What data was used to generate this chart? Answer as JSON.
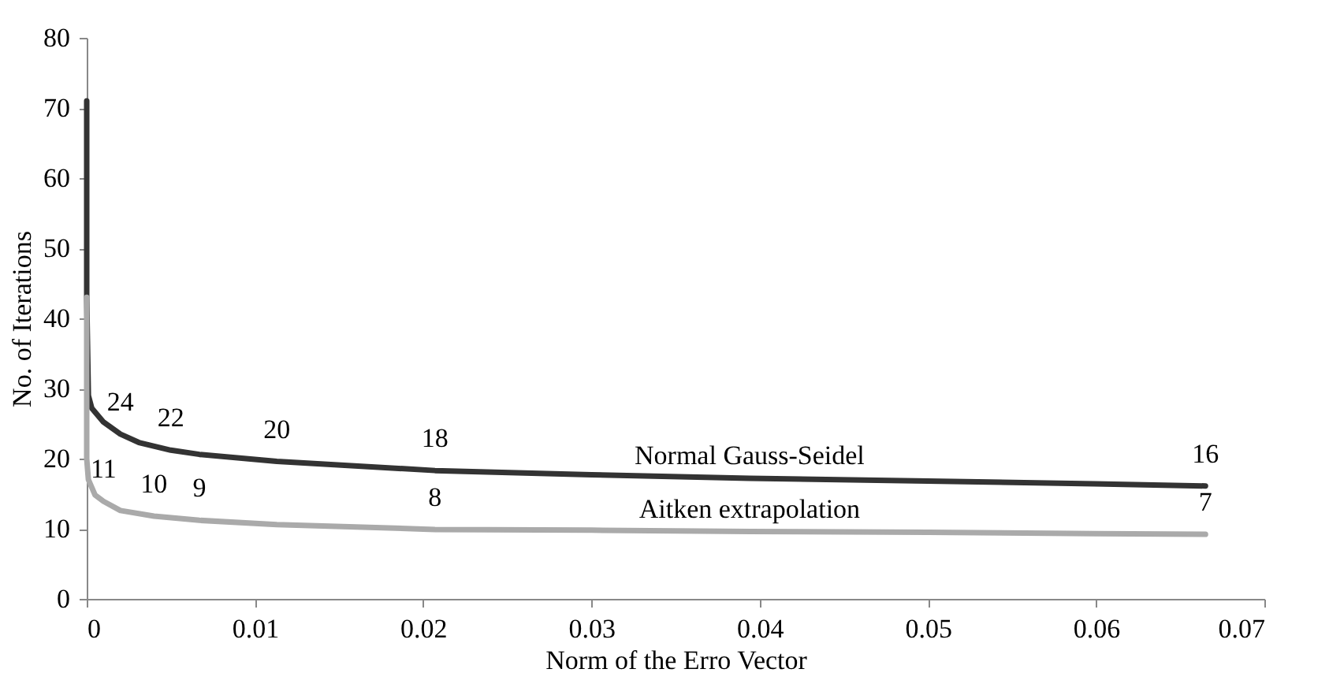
{
  "chart_data": {
    "type": "line",
    "xlabel": "Norm of the Erro Vector",
    "ylabel": "No. of Iterations",
    "xlim": [
      0,
      0.07
    ],
    "xticks": [
      0,
      0.01,
      0.02,
      0.03,
      0.04,
      0.05,
      0.06,
      0.07
    ],
    "ylim": [
      0,
      80
    ],
    "yticks": [
      0,
      10,
      20,
      30,
      40,
      50,
      60,
      70,
      80
    ],
    "grid": false,
    "marker": "none",
    "line_style": "solid",
    "series": [
      {
        "name": "Normal Gauss-Seidel",
        "color": "#333333",
        "x": [
          0,
          0,
          0.0001,
          0.0003,
          0.001,
          0.002,
          0.0031,
          0.005,
          0.0067,
          0.0113,
          0.0207,
          0.03,
          0.0394,
          0.05,
          0.0599,
          0.0665
        ],
        "values": [
          71,
          43,
          29,
          27.2,
          25.2,
          23.5,
          22.3,
          21.2,
          20.6,
          19.6,
          18.3,
          17.7,
          17.2,
          16.8,
          16.4,
          16.1
        ]
      },
      {
        "name": "Aitken extrapolation",
        "color": "#aaaaaa",
        "x": [
          0,
          0,
          0.0001,
          0.0005,
          0.001,
          0.002,
          0.004,
          0.0067,
          0.0113,
          0.0207,
          0.03,
          0.0394,
          0.05,
          0.06,
          0.0665
        ],
        "values": [
          43,
          20,
          17,
          14.8,
          13.9,
          12.6,
          11.8,
          11.2,
          10.6,
          9.9,
          9.8,
          9.6,
          9.5,
          9.3,
          9.2
        ]
      }
    ],
    "annotations": [
      {
        "text": "24",
        "x": 0.002,
        "y": 23.5
      },
      {
        "text": "22",
        "x": 0.005,
        "y": 21.2
      },
      {
        "text": "20",
        "x": 0.0113,
        "y": 19.6
      },
      {
        "text": "18",
        "x": 0.0207,
        "y": 18.3
      },
      {
        "text": "16",
        "x": 0.0665,
        "y": 16.1
      },
      {
        "text": "11",
        "x": 0.001,
        "y": 13.9
      },
      {
        "text": "10",
        "x": 0.004,
        "y": 11.8
      },
      {
        "text": "9",
        "x": 0.0067,
        "y": 11.2
      },
      {
        "text": "8",
        "x": 0.0207,
        "y": 9.9
      },
      {
        "text": "7",
        "x": 0.0665,
        "y": 9.2
      }
    ]
  }
}
